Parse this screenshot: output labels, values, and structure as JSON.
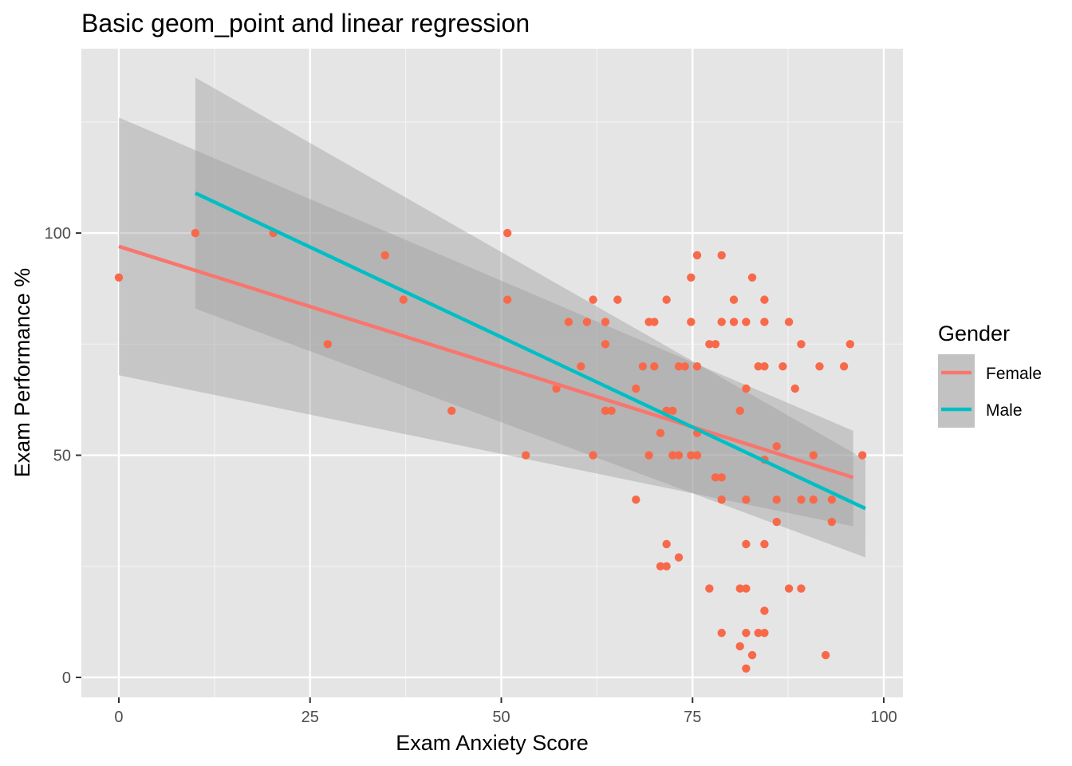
{
  "chart_data": {
    "type": "scatter",
    "title": "Basic geom_point and linear regression",
    "xlabel": "Exam Anxiety Score",
    "ylabel": "Exam Performance %",
    "xlim": [
      -4.9,
      102.5
    ],
    "ylim": [
      -4.5,
      141.5
    ],
    "x_ticks": [
      0,
      25,
      50,
      75,
      100
    ],
    "x_tick_labels": [
      "0",
      "25",
      "50",
      "75",
      "100"
    ],
    "y_ticks": [
      0,
      50,
      100
    ],
    "y_tick_labels": [
      "0",
      "50",
      "100"
    ],
    "grid": true,
    "panel_background": "#e5e5e5",
    "point_color": "#f8694a",
    "legend": {
      "title": "Gender",
      "placement": "right",
      "entries": [
        {
          "label": "Female",
          "color": "#f8766d"
        },
        {
          "label": "Male",
          "color": "#00bfc4"
        }
      ]
    },
    "points": [
      [
        0,
        90
      ],
      [
        10,
        100
      ],
      [
        20.2,
        100
      ],
      [
        27.3,
        75
      ],
      [
        34.8,
        95
      ],
      [
        37.2,
        85
      ],
      [
        43.5,
        60
      ],
      [
        50.8,
        100
      ],
      [
        50.8,
        85
      ],
      [
        53.2,
        50
      ],
      [
        57.2,
        65
      ],
      [
        58.8,
        80
      ],
      [
        60.4,
        70
      ],
      [
        61.2,
        80
      ],
      [
        62,
        85
      ],
      [
        62,
        50
      ],
      [
        63.6,
        80
      ],
      [
        63.6,
        75
      ],
      [
        63.6,
        60
      ],
      [
        64.4,
        60
      ],
      [
        65.2,
        85
      ],
      [
        67.6,
        65
      ],
      [
        67.6,
        40
      ],
      [
        68.5,
        70
      ],
      [
        69.3,
        80
      ],
      [
        69.3,
        50
      ],
      [
        70,
        80
      ],
      [
        70,
        70
      ],
      [
        70.8,
        55
      ],
      [
        70.8,
        25
      ],
      [
        71.6,
        85
      ],
      [
        71.6,
        60
      ],
      [
        71.6,
        30
      ],
      [
        71.6,
        25
      ],
      [
        72.4,
        60
      ],
      [
        72.4,
        50
      ],
      [
        73.2,
        70
      ],
      [
        73.2,
        50
      ],
      [
        73.2,
        27
      ],
      [
        74,
        70
      ],
      [
        74.8,
        90
      ],
      [
        74.8,
        80
      ],
      [
        74.8,
        50
      ],
      [
        75.6,
        95
      ],
      [
        75.6,
        70
      ],
      [
        75.6,
        55
      ],
      [
        75.6,
        50
      ],
      [
        77.2,
        75
      ],
      [
        77.2,
        20
      ],
      [
        78,
        75
      ],
      [
        78,
        45
      ],
      [
        78.8,
        95
      ],
      [
        78.8,
        80
      ],
      [
        78.8,
        45
      ],
      [
        78.8,
        40
      ],
      [
        78.8,
        10
      ],
      [
        80.4,
        85
      ],
      [
        80.4,
        80
      ],
      [
        81.2,
        60
      ],
      [
        81.2,
        20
      ],
      [
        81.2,
        7
      ],
      [
        82,
        80
      ],
      [
        82,
        65
      ],
      [
        82,
        40
      ],
      [
        82,
        30
      ],
      [
        82,
        20
      ],
      [
        82,
        10
      ],
      [
        82,
        2
      ],
      [
        82.8,
        90
      ],
      [
        82.8,
        5
      ],
      [
        83.6,
        70
      ],
      [
        83.6,
        10
      ],
      [
        84.4,
        85
      ],
      [
        84.4,
        80
      ],
      [
        84.4,
        70
      ],
      [
        84.4,
        49
      ],
      [
        84.4,
        30
      ],
      [
        84.4,
        15
      ],
      [
        84.4,
        10
      ],
      [
        86,
        52
      ],
      [
        86,
        40
      ],
      [
        86,
        35
      ],
      [
        86.8,
        70
      ],
      [
        87.6,
        80
      ],
      [
        87.6,
        20
      ],
      [
        88.4,
        65
      ],
      [
        89.2,
        75
      ],
      [
        89.2,
        40
      ],
      [
        89.2,
        20
      ],
      [
        90.8,
        50
      ],
      [
        90.8,
        40
      ],
      [
        91.6,
        70
      ],
      [
        92.4,
        5
      ],
      [
        93.2,
        40
      ],
      [
        93.2,
        35
      ],
      [
        94.8,
        70
      ],
      [
        95.6,
        75
      ],
      [
        97.2,
        50
      ]
    ],
    "series": [
      {
        "name": "Female",
        "color": "#f8766d",
        "x": [
          0,
          96
        ],
        "y": [
          97,
          45
        ],
        "ci_lower": [
          68,
          34
        ],
        "ci_upper": [
          126,
          55.5
        ]
      },
      {
        "name": "Male",
        "color": "#00bfc4",
        "x": [
          10,
          97.6
        ],
        "y": [
          109,
          38
        ],
        "ci_lower": [
          83,
          27
        ],
        "ci_upper": [
          135,
          49
        ]
      }
    ]
  }
}
